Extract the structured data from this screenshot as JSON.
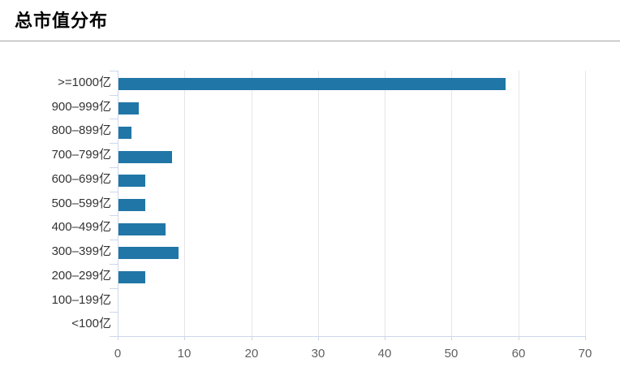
{
  "header": {
    "title": "总市值分布"
  },
  "chart_data": {
    "type": "bar",
    "orientation": "horizontal",
    "title": "总市值分布",
    "categories": [
      ">=1000亿",
      "900–999亿",
      "800–899亿",
      "700–799亿",
      "600–699亿",
      "500–599亿",
      "400–499亿",
      "300–399亿",
      "200–299亿",
      "100–199亿",
      "<100亿"
    ],
    "values": [
      58,
      3,
      2,
      8,
      4,
      4,
      7,
      9,
      4,
      0,
      0
    ],
    "xlabel": "",
    "ylabel": "",
    "xlim": [
      0,
      70
    ],
    "x_ticks": [
      0,
      10,
      20,
      30,
      40,
      50,
      60,
      70
    ],
    "grid": true,
    "legend": false,
    "colors": {
      "bar": "#2076a6",
      "axis_line": "#ccd6eb",
      "grid_line": "#e6e6e6",
      "category_label": "#333333",
      "value_label": "#606060",
      "title": "#000000",
      "divider": "#a3a3a3"
    }
  }
}
